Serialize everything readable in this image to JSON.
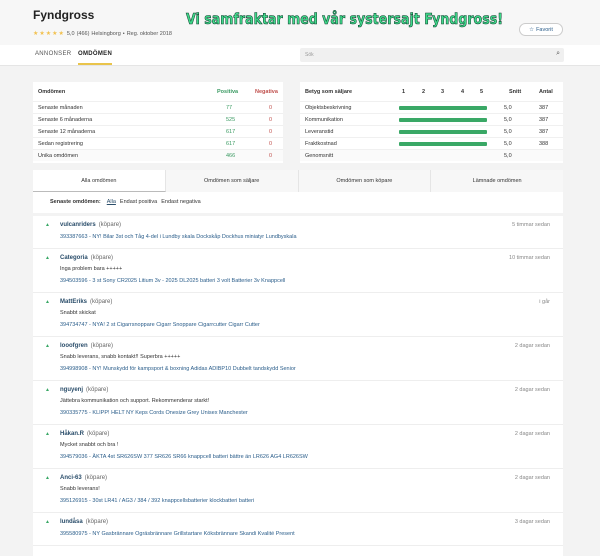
{
  "header": {
    "title": "Fyndgross",
    "stars": "★★★★★",
    "rating": "5,0",
    "count": "(466)",
    "location": "Helsingborg",
    "registered": "Reg. oktober 2018",
    "banner": "Vi samfraktar med vår systersajt Fyndgross!",
    "favorite_label": "Favorit"
  },
  "nav": {
    "tabs": [
      {
        "label": "ANNONSER"
      },
      {
        "label": "OMDÖMEN"
      }
    ],
    "search_placeholder": "Sök"
  },
  "stats": {
    "headers": [
      "Omdömen",
      "Positiva",
      "Negativa"
    ],
    "rows": [
      {
        "label": "Senaste månaden",
        "pos": "77",
        "neg": "0"
      },
      {
        "label": "Senaste 6 månaderna",
        "pos": "525",
        "neg": "0"
      },
      {
        "label": "Senaste 12 månaderna",
        "pos": "617",
        "neg": "0"
      },
      {
        "label": "Sedan registrering",
        "pos": "617",
        "neg": "0"
      },
      {
        "label": "Unika omdömen",
        "pos": "466",
        "neg": "0"
      }
    ]
  },
  "ratings": {
    "headers": [
      "Betyg som säljare",
      "1",
      "2",
      "3",
      "4",
      "5",
      "Snitt",
      "Antal"
    ],
    "rows": [
      {
        "label": "Objektsbeskrivning",
        "avg": "5,0",
        "count": "387",
        "level": 5
      },
      {
        "label": "Kommunikation",
        "avg": "5,0",
        "count": "387",
        "level": 5
      },
      {
        "label": "Leveranstid",
        "avg": "5,0",
        "count": "387",
        "level": 5
      },
      {
        "label": "Fraktkostnad",
        "avg": "5,0",
        "count": "388",
        "level": 5
      }
    ],
    "total": {
      "label": "Genomsnitt",
      "avg": "5,0"
    },
    "bar_color": "#3aa866"
  },
  "tabs": [
    "Alla omdömen",
    "Omdömen som säljare",
    "Omdömen som köpare",
    "Lämnade omdömen"
  ],
  "filter": {
    "label": "Senaste omdömen:",
    "options": [
      "Alla",
      "Endast positiva",
      "Endast negativa"
    ]
  },
  "reviews": [
    {
      "user": "vulcanriders",
      "role": "(köpare)",
      "text": "",
      "item": "393387663 - NY! Bilar 3st och Tåg 4-del i Lundby skala Dockskåp Dockhus miniatyr Lundbyskala",
      "time": "5 timmar sedan"
    },
    {
      "user": "Categoria",
      "role": "(köpare)",
      "text": "Inga problem bara +++++",
      "item": "394503596 - 3 st Sony CR2025 Litium 3v - 2025 DL2025 batteri 3 volt Batterier 3v Knappcell",
      "time": "10 timmar sedan"
    },
    {
      "user": "MattEriks",
      "role": "(köpare)",
      "text": "Snabbt skickat",
      "item": "394734747 - NYA! 2 st Cigarrsnoppare Cigarr Snoppare Cigarrcutter Cigarr Cutter",
      "time": "i går"
    },
    {
      "user": "looofgren",
      "role": "(köpare)",
      "text": "Snabb leverans, snabb kontakt!! Superbra +++++",
      "item": "394998908 - NY! Munskydd för kampsport & boxning Adidas ADIBP10 Dubbelt tandskydd Senior",
      "time": "2 dagar sedan"
    },
    {
      "user": "nguyenj",
      "role": "(köpare)",
      "text": "Jättebra kommunikation och support. Rekommenderar starkt!",
      "item": "390335775 - KLIPP! HELT NY Keps Cords Onesize Grey Unisex Manchester",
      "time": "2 dagar sedan"
    },
    {
      "user": "Håkan.R",
      "role": "(köpare)",
      "text": "Mycket snabbt och bra !",
      "item": "394579036 - ÄKTA 4st SR626SW 377 SR626 SR66 knappcell batteri bättre än LR626 AG4 LR626SW",
      "time": "2 dagar sedan"
    },
    {
      "user": "Anci-63",
      "role": "(köpare)",
      "text": "Snabb leverans!",
      "item": "395126915 - 30st LR41 / AG3 / 384 / 392 knappcellsbatterier klockbatteri batteri",
      "time": "2 dagar sedan"
    },
    {
      "user": "lundåsa",
      "role": "(köpare)",
      "text": "",
      "item": "395580975 - NY Gasbrännare Ogräsbrännare Grillstartare Köksbrännare Skandi Kvalité Present",
      "time": "3 dagar sedan"
    }
  ]
}
